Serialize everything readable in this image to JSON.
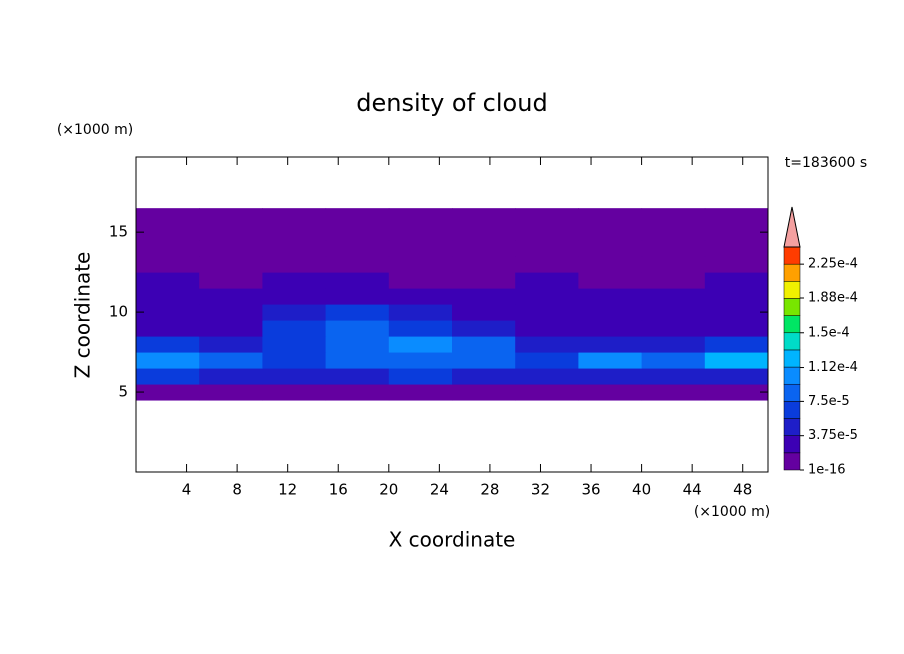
{
  "chart_data": {
    "type": "contour",
    "title": "density of cloud",
    "x_label": "X coordinate",
    "y_label": "Z coordinate",
    "x_unit": "(×1000 m)",
    "y_unit": "(×1000 m)",
    "annotation": "t=183600 s",
    "xlim": [
      0,
      50
    ],
    "ylim": [
      0,
      19.7
    ],
    "xticks": [
      4,
      8,
      12,
      16,
      20,
      24,
      28,
      32,
      36,
      40,
      44,
      48
    ],
    "yticks": [
      5,
      10,
      15
    ],
    "x": [
      2.5,
      7.5,
      12.5,
      17.5,
      22.5,
      27.5,
      32.5,
      37.5,
      42.5,
      47.5
    ],
    "z": [
      5,
      6,
      7,
      8,
      9,
      10,
      11,
      12,
      13,
      14,
      15,
      16
    ],
    "values": [
      [
        1e-05,
        1e-05,
        1e-05,
        1e-05,
        1e-05,
        1e-05,
        1e-05,
        1e-05,
        1e-05,
        1e-05
      ],
      [
        6e-05,
        5e-05,
        4e-05,
        5e-05,
        6e-05,
        5e-05,
        4e-05,
        4e-05,
        5e-05,
        5e-05
      ],
      [
        0.00011,
        9e-05,
        6e-05,
        8e-05,
        9e-05,
        8e-05,
        7e-05,
        0.0001,
        9e-05,
        0.00012
      ],
      [
        6e-05,
        5e-05,
        7e-05,
        9e-05,
        0.0001,
        8e-05,
        5e-05,
        4e-05,
        5e-05,
        6e-05
      ],
      [
        3e-05,
        3e-05,
        6e-05,
        8e-05,
        7e-05,
        4e-05,
        3e-05,
        3e-05,
        3e-05,
        3e-05
      ],
      [
        2e-05,
        3e-05,
        5e-05,
        6e-05,
        5e-05,
        3e-05,
        2e-05,
        2e-05,
        3e-05,
        2e-05
      ],
      [
        2e-05,
        2e-05,
        3e-05,
        3e-05,
        3e-05,
        2e-05,
        2e-05,
        2e-05,
        2e-05,
        2e-05
      ],
      [
        2e-05,
        1e-05,
        2e-05,
        2e-05,
        1e-05,
        1e-05,
        2e-05,
        1e-05,
        1e-05,
        2e-05
      ],
      [
        1e-05,
        1e-05,
        1e-05,
        1e-05,
        1e-05,
        1e-05,
        1e-05,
        1e-05,
        1e-05,
        1e-05
      ],
      [
        1e-05,
        1e-05,
        1e-05,
        1e-05,
        1e-05,
        1e-05,
        1e-05,
        1e-05,
        1e-05,
        1e-05
      ],
      [
        1e-05,
        1e-05,
        1e-05,
        1e-05,
        1e-05,
        1e-05,
        1e-05,
        1e-05,
        1e-05,
        1e-05
      ],
      [
        1e-05,
        1e-05,
        1e-05,
        1e-05,
        1e-05,
        1e-05,
        1e-05,
        1e-05,
        1e-05,
        1e-05
      ]
    ],
    "levels": [
      1e-16,
      1.875e-05,
      3.75e-05,
      5.625e-05,
      7.5e-05,
      9.375e-05,
      0.0001125,
      0.00013125,
      0.00015,
      0.00016875,
      0.0001875,
      0.00020625,
      0.000225,
      0.00024375
    ],
    "level_colors": [
      "#6400a0",
      "#3c00b4",
      "#1e1ec8",
      "#0a3cdc",
      "#0a64f0",
      "#0a8cff",
      "#00b4ff",
      "#00dcc8",
      "#00e664",
      "#78e600",
      "#f0f000",
      "#ffa000",
      "#ff3c00"
    ],
    "extend_color": "#f4a0a0",
    "colorbar_ticks": [
      1e-16,
      {
        "value": 3.75e-05,
        "label": "3.75e-5"
      },
      {
        "value": 7.5e-05,
        "label": "7.5e-5"
      },
      {
        "value": 0.000112,
        "label": "1.12e-4"
      },
      {
        "value": 0.00015,
        "label": "1.5e-4"
      },
      {
        "value": 0.000188,
        "label": "1.88e-4"
      },
      {
        "value": 0.000225,
        "label": "2.25e-4"
      }
    ]
  }
}
